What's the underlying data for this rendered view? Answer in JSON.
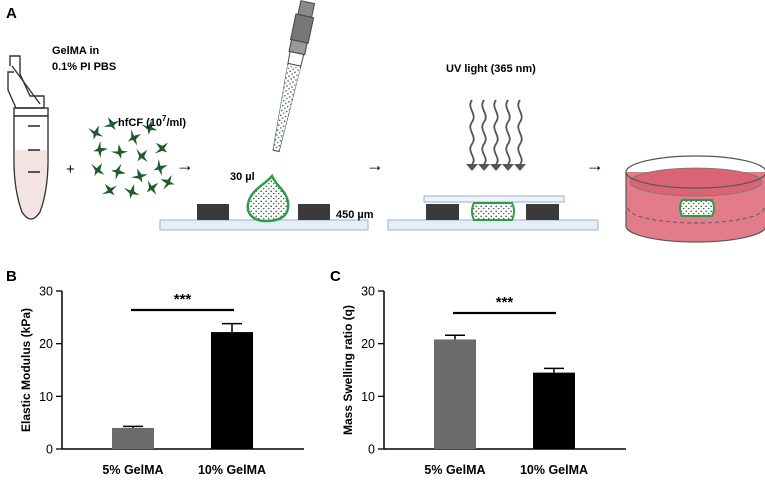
{
  "panel_a": {
    "label": "A",
    "gelma_label_line1": "GelMA in",
    "gelma_label_line2": "0.1% PI PBS",
    "plus": "+",
    "hfcf_label": "hfCF (10",
    "hfcf_exp": "7",
    "hfcf_label_end": "/ml)",
    "volume_label": "30 µl",
    "thickness_label": "450 µm",
    "uv_label": "UV light (365 nm)",
    "arrow": "→"
  },
  "colors": {
    "bar_5": "#6b6b6b",
    "bar_10": "#000000",
    "cell_green": "#1f5a2a",
    "gel_green": "#2e9a4a",
    "dish_pink": "#e07383",
    "spacer": "#3a3a3a",
    "slide": "#dde8f0"
  },
  "chart_data": [
    {
      "panel": "B",
      "type": "bar",
      "categories": [
        "5% GelMA",
        "10% GelMA"
      ],
      "values": [
        4.0,
        22.2
      ],
      "errors": [
        0.3,
        1.6
      ],
      "ylabel": "Elastic Modulus (kPa)",
      "ylim": [
        0,
        30
      ],
      "yticks": [
        0,
        10,
        20,
        30
      ],
      "significance": "***"
    },
    {
      "panel": "C",
      "type": "bar",
      "categories": [
        "5% GelMA",
        "10% GelMA"
      ],
      "values": [
        20.8,
        14.5
      ],
      "errors": [
        0.8,
        0.8
      ],
      "ylabel": "Mass Swelling ratio (q)",
      "ylim": [
        0,
        30
      ],
      "yticks": [
        0,
        10,
        20,
        30
      ],
      "significance": "***"
    }
  ]
}
